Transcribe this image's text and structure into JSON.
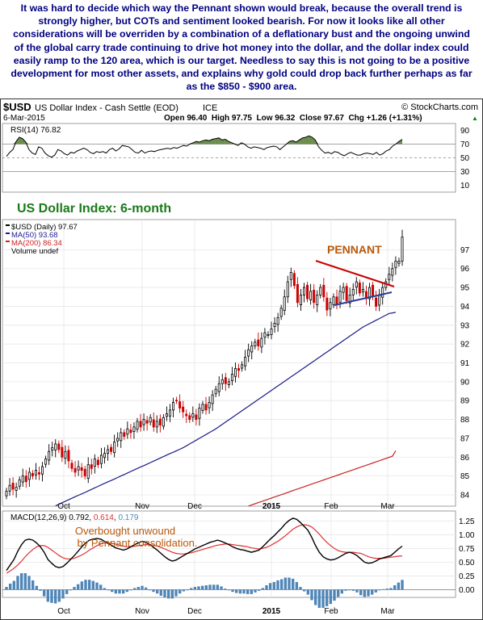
{
  "intro_text": "It was hard to decide which way the Pennant shown would break, because the overall trend is strongly higher, but COTs and sentiment looked bearish. For now it looks like all other considerations will be overriden by a combination of a deflationary bust and the ongoing unwind of the global carry trade continuing to drive hot money into the dollar, and the dollar index could easily ramp to the 120 area, which is our target. Needless to say this is not going to be a positive development for most other assets, and explains why gold could drop back further perhaps as far as the $850 - $900 area.",
  "header": {
    "symbol": "$USD",
    "name": "US Dollar Index - Cash Settle (EOD)",
    "exchange": "ICE",
    "date": "6-Mar-2015",
    "copyright": "© StockCharts.com",
    "ohlc": "Open 96.40  High 97.75  Low 96.32  Close 97.67  Chg +1.26 (+1.31%)",
    "chg_arrow": "▲"
  },
  "colors": {
    "price_up": "#000000",
    "price_down": "#cc0000",
    "ma50": "#1a1a8c",
    "ma200": "#cc2222",
    "rsi_fill": "#6b8e4e",
    "macd_line": "#000000",
    "signal_line": "#e03030",
    "histogram": "#4f86b8",
    "pennant_top": "#cc0000",
    "pennant_bottom": "#2a3c9c",
    "title_green": "#1a7a1a",
    "annotation": "#b8580a"
  },
  "chart_data": [
    {
      "type": "line",
      "panel": "rsi",
      "label": "RSI(14) 76.82",
      "ylim": [
        0,
        100
      ],
      "ticks": [
        10,
        30,
        50,
        70,
        90
      ],
      "series": [
        {
          "name": "RSI(14)",
          "values": [
            52,
            58,
            62,
            74,
            80,
            78,
            73,
            62,
            57,
            55,
            66,
            64,
            57,
            53,
            51,
            54,
            62,
            60,
            56,
            54,
            58,
            57,
            60,
            62,
            64,
            62,
            58,
            56,
            59,
            58,
            59,
            57,
            62,
            64,
            60,
            63,
            68,
            67,
            66,
            62,
            58,
            57,
            61,
            57,
            59,
            60,
            59,
            61,
            62,
            63,
            64,
            63,
            65,
            64,
            66,
            68,
            67,
            70,
            72,
            74,
            73,
            75,
            76,
            75,
            77,
            78,
            79,
            76,
            77,
            74,
            72,
            70,
            68,
            72,
            70,
            66,
            64,
            66,
            65,
            64,
            62,
            65,
            66,
            67,
            66,
            62,
            66,
            70,
            74,
            75,
            73,
            76,
            79,
            80,
            82,
            80,
            76,
            66,
            61,
            57,
            58,
            56,
            59,
            58,
            55,
            53,
            56,
            58,
            56,
            54,
            54,
            56,
            57,
            56,
            55,
            58,
            54,
            56,
            60,
            62,
            67,
            70,
            74,
            76.82
          ]
        }
      ]
    },
    {
      "type": "candlestick",
      "panel": "price",
      "title": "US Dollar Index: 6-month",
      "legend": [
        "$USD (Daily) 97.67",
        "MA(50) 93.68",
        "MA(200) 86.34",
        "Volume undef"
      ],
      "annotation": "PENNANT",
      "ylim": [
        83.4,
        98.6
      ],
      "ticks": [
        84,
        85,
        86,
        87,
        88,
        89,
        90,
        91,
        92,
        93,
        94,
        95,
        96,
        97
      ],
      "x_labels": [
        "Oct",
        "Nov",
        "Dec",
        "2015",
        "Feb",
        "Mar"
      ],
      "close": [
        84.2,
        84.5,
        84.3,
        84.4,
        84.8,
        85.0,
        84.7,
        85.2,
        85.0,
        85.3,
        85.1,
        85.5,
        85.9,
        86.3,
        86.5,
        86.7,
        86.4,
        86.0,
        86.3,
        85.8,
        85.4,
        85.2,
        85.5,
        85.3,
        85.0,
        85.6,
        85.4,
        85.9,
        85.6,
        86.1,
        86.2,
        86.4,
        86.3,
        86.8,
        87.0,
        87.3,
        87.1,
        87.5,
        87.3,
        87.6,
        87.9,
        87.6,
        88.0,
        87.8,
        88.1,
        87.6,
        87.9,
        87.7,
        88.1,
        88.3,
        88.5,
        88.9,
        89.0,
        88.6,
        88.4,
        88.2,
        88.0,
        88.3,
        88.0,
        88.6,
        88.8,
        88.5,
        88.9,
        89.3,
        89.6,
        89.9,
        90.1,
        89.9,
        90.0,
        90.4,
        90.7,
        90.6,
        90.9,
        91.3,
        91.7,
        91.9,
        92.1,
        91.9,
        92.3,
        92.6,
        92.5,
        92.8,
        93.1,
        93.4,
        93.9,
        94.5,
        95.3,
        95.8,
        95.1,
        94.2,
        94.6,
        95.0,
        94.4,
        94.8,
        94.2,
        94.6,
        95.0,
        94.5,
        93.8,
        94.2,
        94.5,
        94.1,
        94.8,
        95.0,
        94.3,
        94.6,
        94.9,
        95.3,
        94.7,
        94.9,
        94.4,
        95.0,
        94.5,
        94.0,
        94.6,
        95.0,
        95.3,
        95.7,
        96.0,
        96.4,
        96.4,
        97.67
      ],
      "ma50": [
        null,
        null,
        null,
        null,
        null,
        null,
        null,
        null,
        null,
        null,
        null,
        null,
        null,
        null,
        null,
        83.42,
        83.5,
        83.58,
        83.66,
        83.74,
        83.82,
        83.9,
        83.98,
        84.05,
        84.13,
        84.21,
        84.29,
        84.37,
        84.45,
        84.53,
        84.61,
        84.69,
        84.76,
        84.84,
        84.92,
        85.0,
        85.08,
        85.16,
        85.24,
        85.32,
        85.4,
        85.48,
        85.55,
        85.63,
        85.71,
        85.79,
        85.87,
        85.95,
        86.03,
        86.11,
        86.19,
        86.26,
        86.34,
        86.42,
        86.5,
        86.6,
        86.7,
        86.8,
        86.9,
        87.0,
        87.1,
        87.2,
        87.3,
        87.4,
        87.5,
        87.62,
        87.74,
        87.86,
        87.98,
        88.1,
        88.22,
        88.34,
        88.46,
        88.58,
        88.7,
        88.82,
        88.94,
        89.06,
        89.18,
        89.3,
        89.42,
        89.54,
        89.66,
        89.78,
        89.9,
        90.02,
        90.14,
        90.26,
        90.38,
        90.5,
        90.62,
        90.74,
        90.86,
        90.98,
        91.1,
        91.22,
        91.34,
        91.46,
        91.58,
        91.7,
        91.82,
        91.94,
        92.06,
        92.18,
        92.3,
        92.42,
        92.54,
        92.66,
        92.78,
        92.9,
        92.99,
        93.08,
        93.17,
        93.26,
        93.35,
        93.44,
        93.53,
        93.62,
        93.65,
        93.68
      ],
      "ma200": [
        null,
        null,
        null,
        null,
        null,
        null,
        null,
        null,
        null,
        null,
        null,
        null,
        null,
        null,
        null,
        null,
        null,
        null,
        null,
        null,
        null,
        null,
        null,
        null,
        null,
        null,
        null,
        null,
        null,
        null,
        null,
        null,
        null,
        null,
        null,
        null,
        null,
        null,
        null,
        null,
        null,
        null,
        null,
        null,
        null,
        null,
        null,
        null,
        null,
        null,
        null,
        null,
        null,
        null,
        null,
        null,
        null,
        null,
        null,
        null,
        null,
        null,
        null,
        null,
        null,
        null,
        null,
        null,
        null,
        null,
        null,
        null,
        null,
        null,
        83.41,
        83.47,
        83.53,
        83.59,
        83.65,
        83.71,
        83.77,
        83.83,
        83.89,
        83.95,
        84.01,
        84.07,
        84.13,
        84.19,
        84.25,
        84.31,
        84.37,
        84.43,
        84.49,
        84.55,
        84.61,
        84.67,
        84.73,
        84.79,
        84.85,
        84.91,
        84.97,
        85.03,
        85.09,
        85.15,
        85.21,
        85.27,
        85.33,
        85.39,
        85.45,
        85.51,
        85.57,
        85.63,
        85.69,
        85.75,
        85.81,
        85.87,
        85.93,
        85.99,
        86.05,
        86.34
      ]
    },
    {
      "type": "line",
      "panel": "macd",
      "label_prefix": "MACD(12,26,9)",
      "label_values": [
        "0.792",
        "0.614",
        "0.179"
      ],
      "annotation": [
        "Overbought unwound",
        "by Pennant consolidation."
      ],
      "ylim": [
        -0.14,
        1.43
      ],
      "ticks": [
        "1.25",
        "1.00",
        "0.75",
        "0.50",
        "0.25",
        "0.00"
      ],
      "x_labels": [
        "Oct",
        "Nov",
        "Dec",
        "2015",
        "Feb",
        "Mar"
      ],
      "series": [
        {
          "name": "MACD",
          "values": [
            0.35,
            0.45,
            0.55,
            0.7,
            0.82,
            0.9,
            0.92,
            0.9,
            0.85,
            0.78,
            0.68,
            0.55,
            0.48,
            0.42,
            0.4,
            0.42,
            0.48,
            0.55,
            0.62,
            0.7,
            0.78,
            0.85,
            0.9,
            0.92,
            0.93,
            0.92,
            0.88,
            0.84,
            0.8,
            0.76,
            0.74,
            0.72,
            0.74,
            0.78,
            0.82,
            0.85,
            0.88,
            0.86,
            0.82,
            0.77,
            0.72,
            0.66,
            0.6,
            0.55,
            0.52,
            0.54,
            0.58,
            0.62,
            0.66,
            0.7,
            0.74,
            0.77,
            0.8,
            0.83,
            0.86,
            0.88,
            0.9,
            0.88,
            0.85,
            0.82,
            0.78,
            0.75,
            0.73,
            0.72,
            0.7,
            0.68,
            0.7,
            0.72,
            0.78,
            0.85,
            0.92,
            0.98,
            1.05,
            1.12,
            1.2,
            1.26,
            1.3,
            1.28,
            1.22,
            1.15,
            1.08,
            0.95,
            0.8,
            0.68,
            0.6,
            0.56,
            0.54,
            0.55,
            0.58,
            0.62,
            0.66,
            0.68,
            0.66,
            0.62,
            0.56,
            0.5,
            0.48,
            0.49,
            0.52,
            0.56,
            0.58,
            0.6,
            0.62,
            0.68,
            0.74,
            0.792
          ]
        },
        {
          "name": "Signal",
          "values": [
            0.3,
            0.34,
            0.39,
            0.45,
            0.52,
            0.6,
            0.67,
            0.73,
            0.78,
            0.8,
            0.8,
            0.77,
            0.72,
            0.67,
            0.62,
            0.58,
            0.56,
            0.56,
            0.57,
            0.6,
            0.63,
            0.67,
            0.72,
            0.76,
            0.8,
            0.83,
            0.85,
            0.85,
            0.84,
            0.83,
            0.81,
            0.79,
            0.78,
            0.78,
            0.79,
            0.8,
            0.81,
            0.82,
            0.82,
            0.81,
            0.79,
            0.77,
            0.74,
            0.71,
            0.68,
            0.66,
            0.65,
            0.65,
            0.66,
            0.67,
            0.69,
            0.71,
            0.73,
            0.75,
            0.77,
            0.79,
            0.81,
            0.82,
            0.83,
            0.83,
            0.82,
            0.81,
            0.8,
            0.79,
            0.78,
            0.76,
            0.75,
            0.74,
            0.75,
            0.77,
            0.8,
            0.84,
            0.88,
            0.93,
            0.98,
            1.04,
            1.1,
            1.14,
            1.17,
            1.18,
            1.17,
            1.14,
            1.08,
            1.01,
            0.93,
            0.86,
            0.8,
            0.75,
            0.71,
            0.69,
            0.68,
            0.68,
            0.68,
            0.67,
            0.66,
            0.63,
            0.6,
            0.58,
            0.57,
            0.57,
            0.57,
            0.58,
            0.59,
            0.6,
            0.61,
            0.614
          ]
        }
      ]
    }
  ]
}
